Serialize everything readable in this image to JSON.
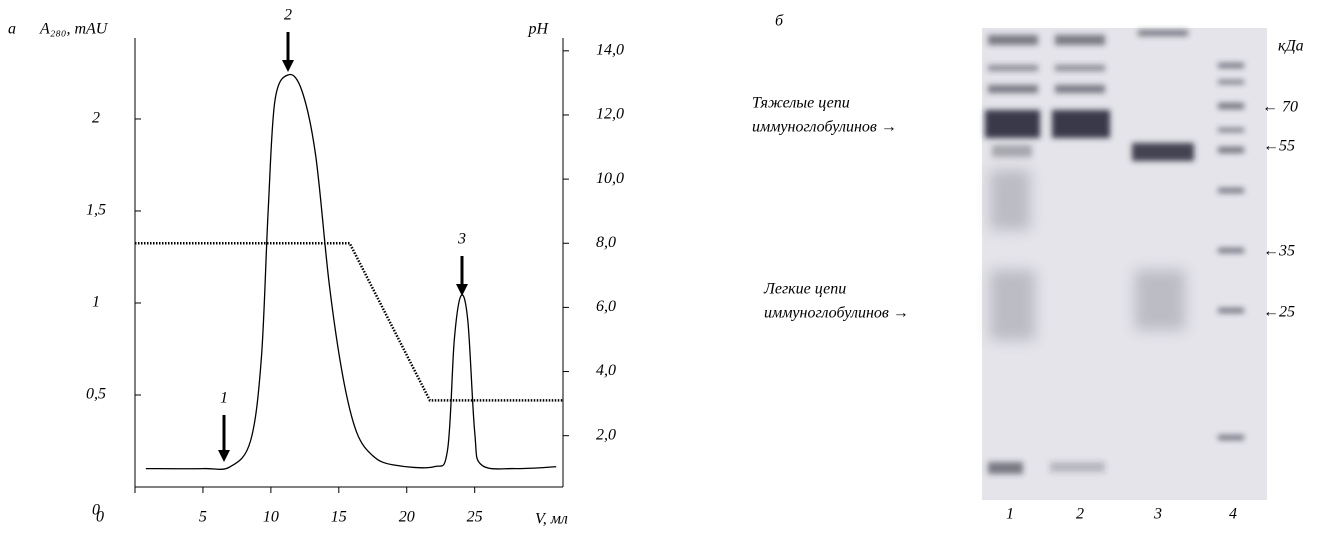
{
  "chart_data": {
    "type": "line",
    "panel_label": "а",
    "y_label": "A₂₈₀, mAU",
    "y2_label": "pH",
    "x_label": "V, мл",
    "xlim": [
      0,
      31.5
    ],
    "xticks": [
      0,
      5,
      10,
      15,
      20,
      25
    ],
    "ylim": [
      0,
      2.44
    ],
    "yticks": [
      0,
      {
        "value": 0.5,
        "label": "0,5"
      },
      1,
      {
        "value": 1.5,
        "label": "1,5"
      },
      2
    ],
    "y2lim": [
      0.4,
      14.4
    ],
    "y2ticks": [
      {
        "value": 2,
        "label": "2,0"
      },
      {
        "value": 4,
        "label": "4,0"
      },
      {
        "value": 6,
        "label": "6,0"
      },
      {
        "value": 8,
        "label": "8,0"
      },
      {
        "value": 10,
        "label": "10,0"
      },
      {
        "value": 12,
        "label": "12,0"
      },
      {
        "value": 14,
        "label": "14,0"
      }
    ],
    "annotations": [
      "1",
      "2",
      "3"
    ],
    "series": [
      {
        "color": "#000000",
        "style": "solid",
        "x": [
          0.8,
          5,
          7,
          8.5,
          9.3,
          9.8,
          10.3,
          11.3,
          12.3,
          13.3,
          14.3,
          15.3,
          16.3,
          17.5,
          19,
          22,
          23,
          23.5,
          24,
          24.5,
          25,
          25.5,
          28,
          31
        ],
        "values": [
          0.1,
          0.1,
          0.11,
          0.25,
          0.7,
          1.5,
          2.1,
          2.24,
          2.15,
          1.8,
          1.1,
          0.6,
          0.3,
          0.17,
          0.12,
          0.11,
          0.2,
          0.8,
          1.04,
          0.9,
          0.3,
          0.12,
          0.1,
          0.11
        ]
      },
      {
        "color": "#000000",
        "style": "dotted",
        "axis": "y2",
        "x": [
          0,
          15.8,
          21.7,
          31.5
        ],
        "values": [
          8.0,
          8.0,
          3.1,
          3.1
        ]
      }
    ]
  },
  "gel": {
    "panel_label": "б",
    "unit": "кДа",
    "markers": [
      "← 70",
      "←55",
      "←35",
      "←25"
    ],
    "heavy_chain": [
      "Тяжелые цепи",
      "иммуноглобулинов →"
    ],
    "light_chain": [
      "Легкие цепи",
      "иммуноглобулинов →"
    ],
    "lanes": [
      "1",
      "2",
      "3",
      "4"
    ]
  }
}
